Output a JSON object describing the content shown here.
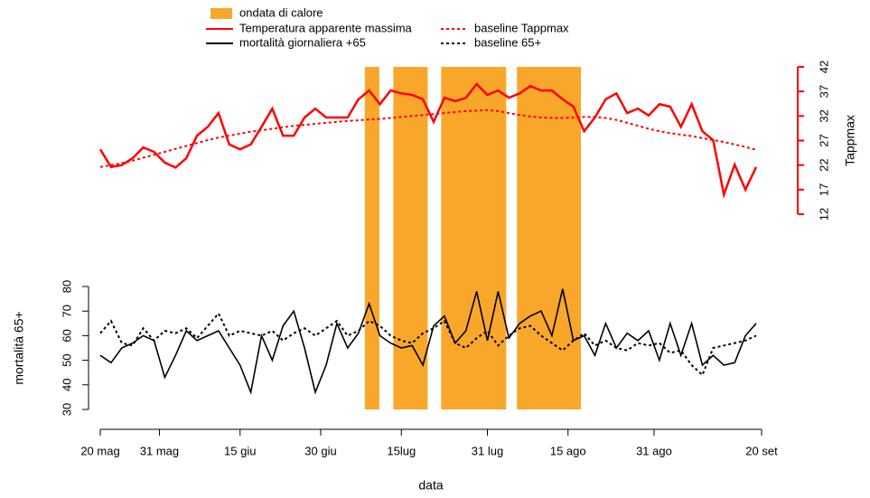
{
  "chart_data": [
    {
      "type": "line",
      "ylabel": "Tappmax",
      "axis_color": "#ff0000",
      "x": [
        0,
        2,
        4,
        6,
        8,
        10,
        12,
        14,
        16,
        18,
        20,
        22,
        24,
        26,
        28,
        30,
        32,
        34,
        36,
        38,
        40,
        42,
        44,
        46,
        48,
        50,
        52,
        54,
        56,
        58,
        60,
        62,
        64,
        66,
        68,
        70,
        72,
        74,
        76,
        78,
        80,
        82,
        84,
        86,
        88,
        90,
        92,
        94,
        96,
        98,
        100,
        102,
        104,
        106,
        108,
        110,
        112,
        114,
        116,
        118,
        120,
        122
      ],
      "xlim": [
        0,
        123
      ],
      "y2lim": [
        12,
        42
      ],
      "y2ticks": [
        12,
        17,
        22,
        27,
        32,
        37,
        42
      ],
      "series": [
        {
          "name": "Temperatura apparente massima",
          "color": "#ff0000",
          "dash": "solid",
          "axis": "y2",
          "values": [
            25.2,
            21.6,
            22,
            23.4,
            25.6,
            24.7,
            22.5,
            21.5,
            23.4,
            28,
            29.8,
            32.6,
            26.2,
            25.2,
            26.2,
            29.8,
            33.5,
            28,
            28,
            31.7,
            33.5,
            31.7,
            31.7,
            31.7,
            35.4,
            37.2,
            34.4,
            37.2,
            36.6,
            36.3,
            35.4,
            30.8,
            35.7,
            35,
            35.7,
            38.5,
            36.3,
            37.2,
            35.7,
            36.6,
            38.1,
            37.2,
            37.2,
            35.4,
            33.9,
            28.9,
            31.7,
            35.4,
            36.6,
            32.6,
            33.5,
            32.1,
            34.4,
            33.9,
            29.8,
            34.4,
            28.9,
            27.1,
            16,
            22.1,
            17,
            21.6
          ]
        },
        {
          "name": "baseline Tappmax",
          "color": "#ff0000",
          "dash": "dotted",
          "axis": "y2",
          "values": [
            21.6,
            22,
            22.4,
            22.9,
            23.5,
            24.1,
            24.7,
            25.3,
            25.9,
            26.5,
            27.1,
            27.6,
            28,
            28.4,
            28.8,
            29.1,
            29.4,
            29.7,
            30,
            30.2,
            30.4,
            30.6,
            30.8,
            31,
            31.1,
            31.3,
            31.4,
            31.6,
            31.8,
            32,
            32.2,
            32.4,
            32.6,
            32.8,
            33,
            33.1,
            33.2,
            33,
            32.6,
            32.2,
            31.9,
            31.7,
            31.6,
            31.6,
            31.7,
            31.8,
            31.8,
            31.6,
            31.2,
            30.6,
            30,
            29.4,
            28.9,
            28.5,
            28.2,
            27.9,
            27.5,
            27.1,
            26.7,
            26.2,
            25.7,
            25.1
          ]
        }
      ]
    },
    {
      "type": "line",
      "ylabel": "mortalità 65+",
      "xlabel": "data",
      "x": [
        0,
        2,
        4,
        6,
        8,
        10,
        12,
        14,
        16,
        18,
        20,
        22,
        24,
        26,
        28,
        30,
        32,
        34,
        36,
        38,
        40,
        42,
        44,
        46,
        48,
        50,
        52,
        54,
        56,
        58,
        60,
        62,
        64,
        66,
        68,
        70,
        72,
        74,
        76,
        78,
        80,
        82,
        84,
        86,
        88,
        90,
        92,
        94,
        96,
        98,
        100,
        102,
        104,
        106,
        108,
        110,
        112,
        114,
        116,
        118,
        120,
        122
      ],
      "xlim": [
        0,
        123
      ],
      "xticks": [
        {
          "value": 0,
          "label": "20 mag"
        },
        {
          "value": 11,
          "label": "31 mag"
        },
        {
          "value": 26,
          "label": "15 giu"
        },
        {
          "value": 41,
          "label": "30 giu"
        },
        {
          "value": 56,
          "label": "15lug"
        },
        {
          "value": 72,
          "label": "31 lug"
        },
        {
          "value": 87,
          "label": "15 ago"
        },
        {
          "value": 103,
          "label": "31 ago"
        },
        {
          "value": 123,
          "label": "20 set"
        }
      ],
      "ylim": [
        30,
        80
      ],
      "yticks": [
        30,
        40,
        50,
        60,
        70,
        80
      ],
      "heatwaves": {
        "name": "ondata di calore",
        "color": "#f9a72b",
        "ranges": [
          [
            49.2,
            51.9
          ],
          [
            54.5,
            60.9
          ],
          [
            63.4,
            75.5
          ],
          [
            77.5,
            89.4
          ]
        ]
      },
      "series": [
        {
          "name": "mortalità giornaliera +65",
          "color": "#000000",
          "dash": "solid",
          "values": [
            52,
            49,
            55,
            57,
            60,
            58,
            43,
            52,
            62,
            58,
            60,
            62,
            55,
            48,
            37,
            60,
            50,
            64,
            70,
            55,
            37,
            48,
            65,
            55,
            61,
            73,
            60,
            57,
            55,
            56,
            48,
            64,
            68,
            57,
            62,
            78,
            58,
            78,
            59,
            65,
            68,
            70,
            60,
            79,
            58,
            60,
            52,
            65,
            55,
            61,
            58,
            62,
            50,
            65,
            52,
            65,
            48,
            52,
            48,
            49,
            60,
            65
          ]
        },
        {
          "name": "baseline 65+",
          "color": "#000000",
          "dash": "dotted",
          "values": [
            61,
            66,
            57,
            56,
            63,
            58,
            62,
            61,
            63,
            59,
            64,
            69,
            60,
            62,
            61,
            60,
            62,
            58,
            61,
            63,
            60,
            63,
            66,
            60,
            62,
            66,
            64,
            60,
            58,
            57,
            61,
            63,
            66,
            57,
            55,
            59,
            62,
            56,
            60,
            63,
            64,
            60,
            57,
            54,
            58,
            61,
            56,
            58,
            55,
            54,
            57,
            56,
            57,
            53,
            54,
            48,
            44,
            55,
            56,
            57,
            58,
            60
          ]
        }
      ]
    }
  ]
}
